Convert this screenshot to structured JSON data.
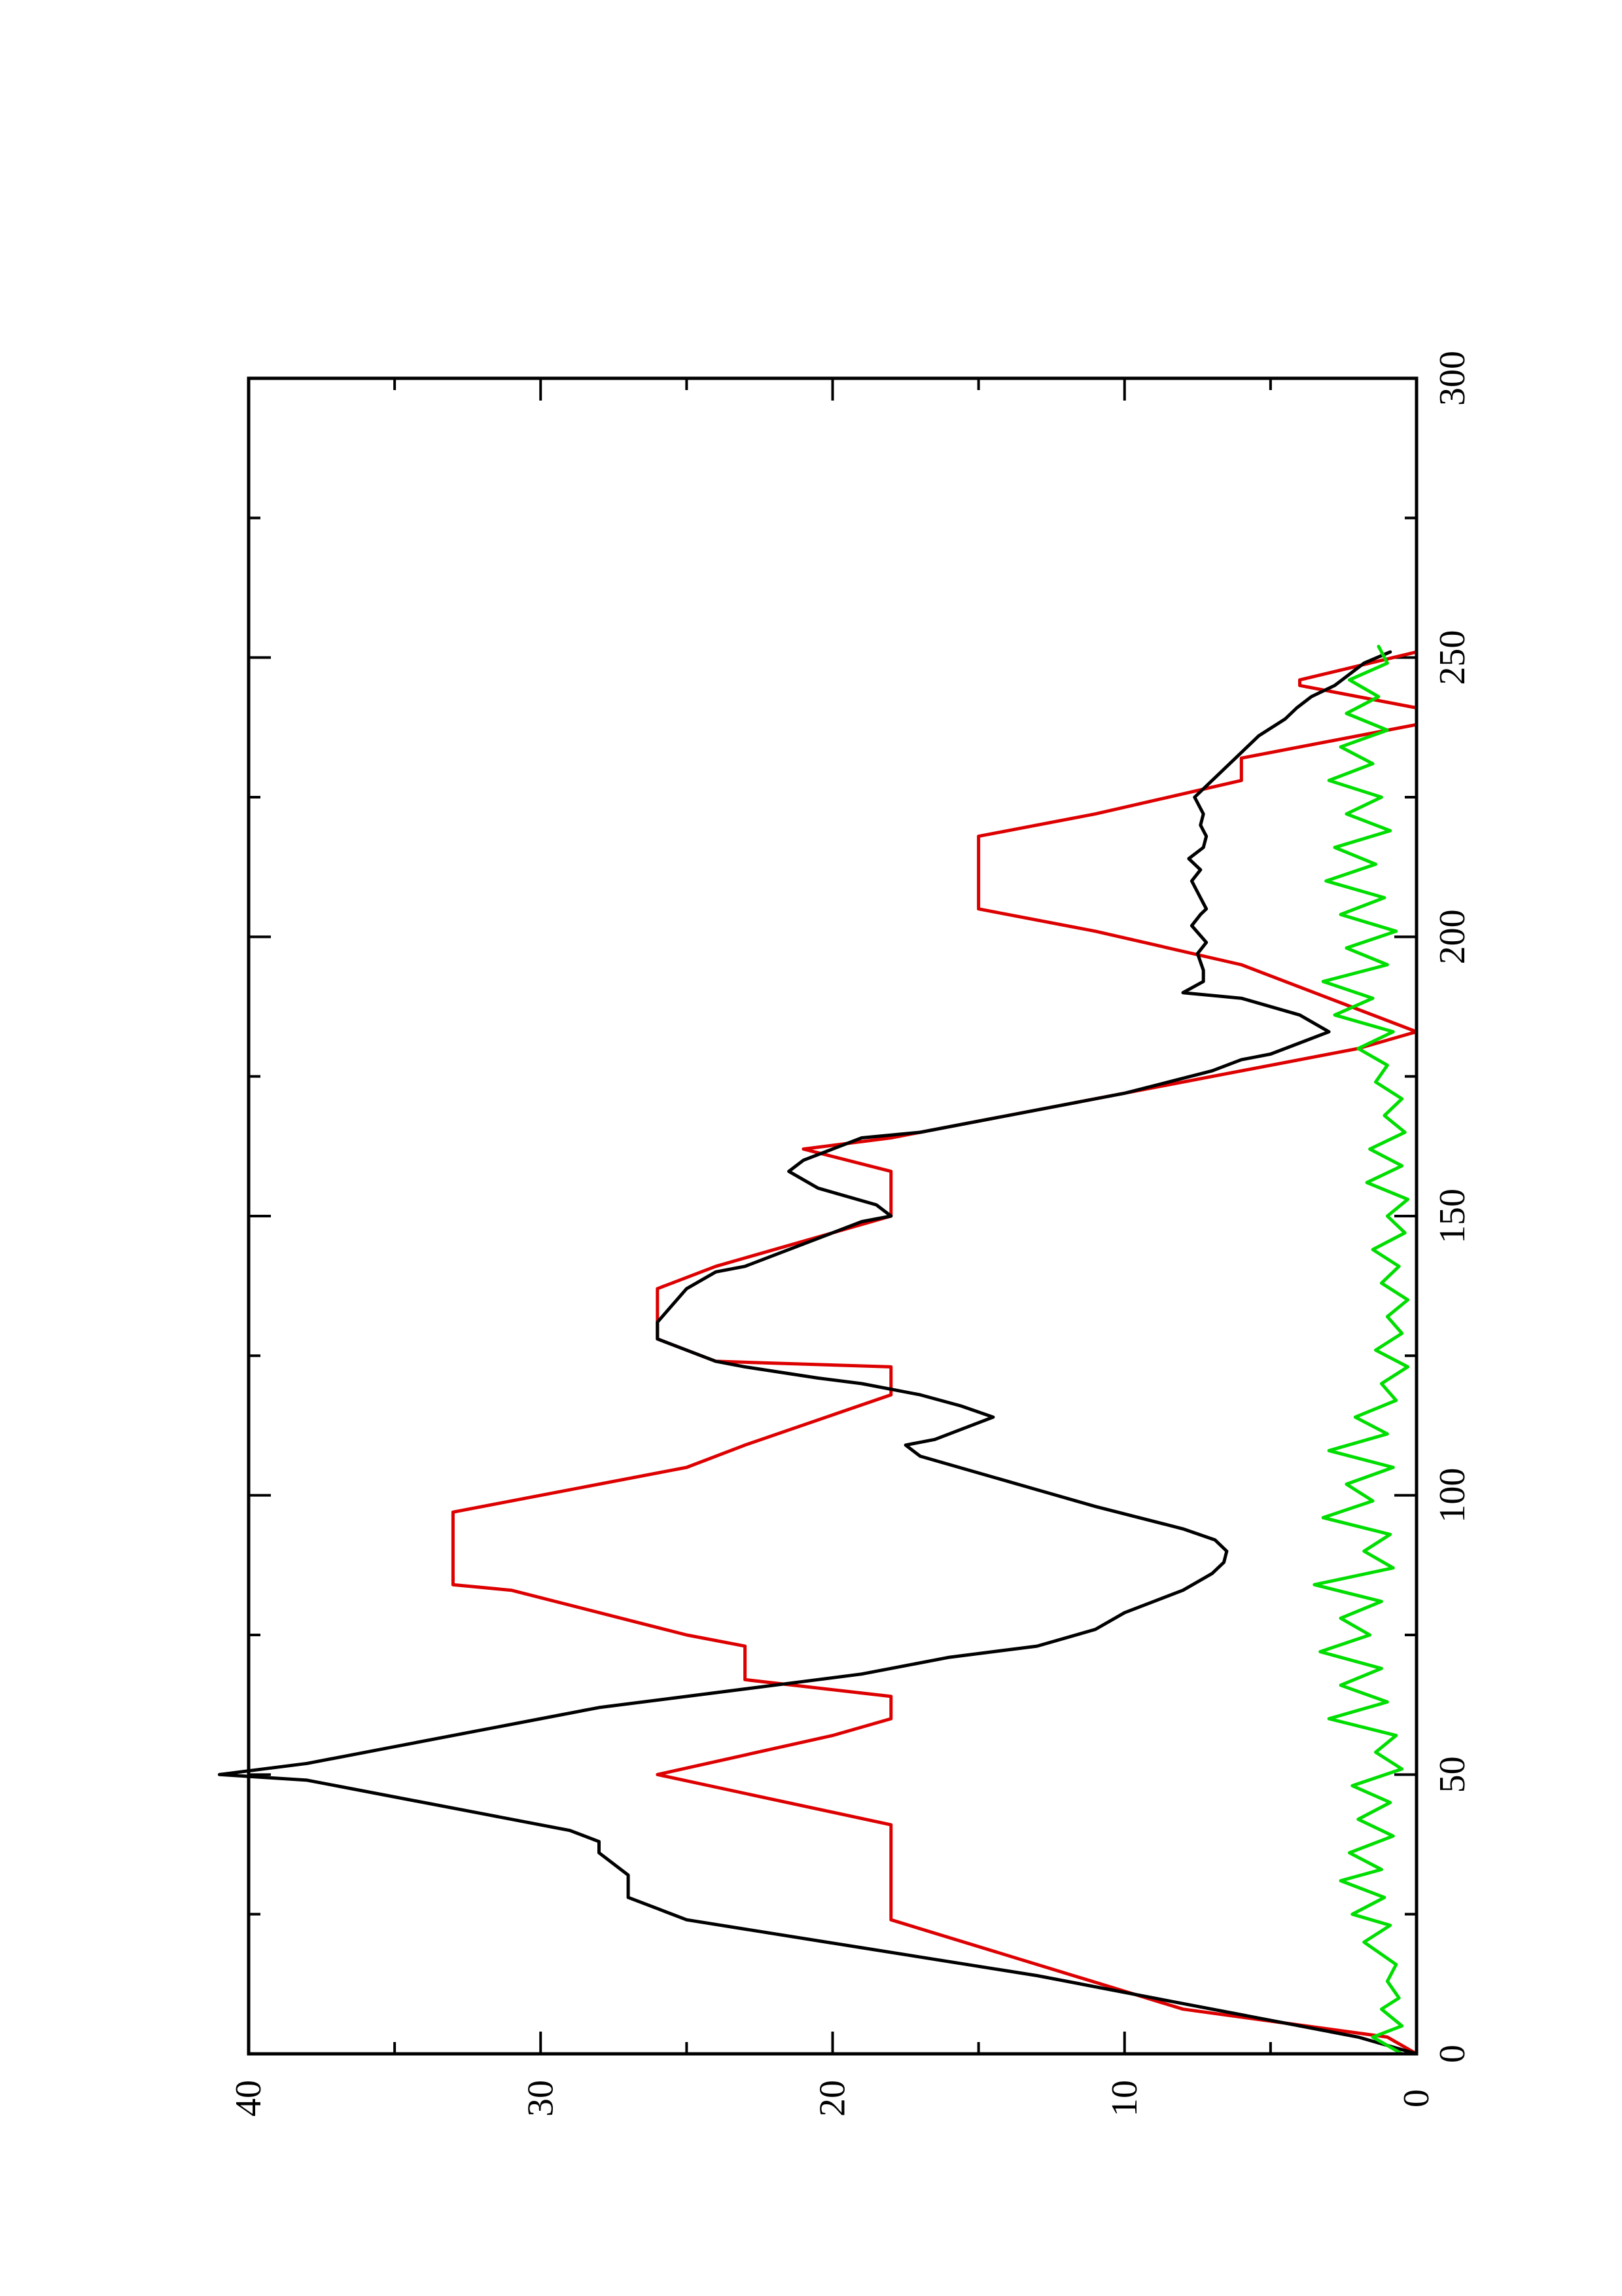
{
  "chart_data": {
    "type": "line",
    "title": "",
    "xlabel": "",
    "ylabel": "",
    "xlim": [
      0,
      300
    ],
    "ylim": [
      0,
      40
    ],
    "x_ticks": [
      0,
      50,
      100,
      150,
      200,
      250,
      300
    ],
    "x_tick_labels": [
      "0",
      "50",
      "100",
      "150",
      "200",
      "250",
      "300"
    ],
    "x_minor_ticks": [
      25,
      75,
      125,
      175,
      225,
      275
    ],
    "y_ticks": [
      0,
      10,
      20,
      30,
      40
    ],
    "y_tick_labels": [
      "0",
      "10",
      "20",
      "30",
      "40"
    ],
    "y_minor_ticks": [
      5,
      15,
      25,
      35
    ],
    "grid": false,
    "legend": "none",
    "orientation": "rotated 90° counter-clockwise (x axis runs bottom-to-top, y axis runs right-to-left)",
    "series": [
      {
        "color": "#dd0000",
        "x": [
          0,
          3,
          8,
          24,
          41,
          50,
          57,
          60,
          64,
          67,
          73,
          75,
          83,
          84,
          97,
          105,
          109,
          118,
          123,
          124,
          128,
          137,
          141,
          150,
          158,
          162,
          164,
          180,
          183,
          195,
          201,
          205,
          218,
          222,
          228,
          232,
          238,
          241,
          245,
          246,
          251
        ],
        "y": [
          0,
          1,
          8,
          18,
          18,
          26,
          20,
          18,
          18,
          23,
          23,
          25,
          31,
          33,
          33,
          25,
          23,
          18,
          18,
          24,
          26,
          26,
          24,
          18,
          18,
          21,
          18,
          2,
          0,
          6,
          11,
          15,
          15,
          11,
          6,
          6,
          0,
          0,
          4,
          4,
          0
        ]
      },
      {
        "color": "#000000",
        "x": [
          0,
          3,
          6,
          10,
          14,
          19,
          24,
          26,
          28,
          32,
          36,
          38,
          40,
          43,
          46,
          49,
          50,
          52,
          55,
          58,
          60,
          62,
          64,
          66,
          68,
          71,
          73,
          76,
          79,
          81,
          83,
          86,
          88,
          90,
          92,
          94,
          96,
          98,
          101,
          104,
          107,
          109,
          110,
          114,
          116,
          118,
          120,
          121,
          123,
          124,
          127,
          128,
          131,
          137,
          140,
          141,
          144,
          147,
          149,
          150,
          152,
          155,
          158,
          160,
          162,
          164,
          165,
          168,
          172,
          176,
          178,
          179,
          181,
          183,
          186,
          189,
          190,
          192,
          194,
          197,
          199,
          202,
          204,
          205,
          208,
          210,
          212,
          214,
          216,
          218,
          220,
          222,
          225,
          229,
          232,
          236,
          239,
          241,
          243,
          245,
          247,
          249,
          251
        ],
        "y": [
          0,
          2,
          5,
          9,
          13,
          19,
          25,
          26,
          27,
          27,
          28,
          28,
          29,
          32,
          35,
          38,
          41,
          38,
          35,
          32,
          30,
          28,
          25,
          22,
          19,
          16,
          13,
          11,
          10,
          9,
          8,
          7,
          6.6,
          6.5,
          6.9,
          8,
          9.5,
          11,
          13,
          15,
          17,
          17.5,
          16.5,
          14.5,
          15.6,
          17,
          19,
          20.5,
          23,
          24,
          25.5,
          26,
          26,
          25,
          24,
          23,
          21.5,
          20,
          19,
          18,
          18.5,
          20.5,
          21.5,
          21,
          20,
          19,
          17,
          14,
          10,
          7,
          6,
          5,
          4,
          3,
          4,
          6,
          8,
          7.3,
          7.3,
          7.5,
          7.2,
          7.7,
          7.4,
          7.2,
          7.5,
          7.7,
          7.4,
          7.8,
          7.3,
          7.2,
          7.4,
          7.3,
          7.6,
          6.8,
          6.2,
          5.4,
          4.5,
          4.1,
          3.6,
          2.8,
          2.3,
          1.8,
          0.9
        ]
      },
      {
        "color": "#00dd00",
        "x": [
          0,
          3,
          5,
          8,
          10,
          13,
          16,
          20,
          23,
          25,
          28,
          31,
          33,
          36,
          39,
          42,
          45,
          48,
          51,
          54,
          57,
          60,
          63,
          66,
          69,
          72,
          75,
          78,
          81,
          84,
          87,
          90,
          93,
          96,
          99,
          102,
          105,
          108,
          111,
          114,
          117,
          120,
          123,
          126,
          129,
          132,
          135,
          138,
          141,
          144,
          147,
          150,
          153,
          156,
          159,
          162,
          165,
          168,
          171,
          174,
          177,
          180,
          183,
          186,
          189,
          192,
          195,
          198,
          201,
          204,
          207,
          210,
          213,
          216,
          219,
          222,
          225,
          228,
          231,
          234,
          237,
          240,
          243,
          246,
          249,
          252
        ],
        "y": [
          0.5,
          1.5,
          0.5,
          1.2,
          0.6,
          1,
          0.7,
          1.8,
          0.9,
          2.2,
          1.1,
          2.6,
          1.2,
          2.3,
          0.8,
          2,
          0.9,
          2.2,
          0.5,
          1.4,
          0.7,
          3,
          1,
          2.6,
          1.2,
          3.3,
          1.6,
          2.6,
          1.2,
          3.5,
          0.8,
          1.8,
          0.9,
          3.2,
          1.5,
          2.4,
          0.8,
          3,
          1,
          2.1,
          0.7,
          1.2,
          0.3,
          1.4,
          0.5,
          1,
          0.3,
          1.2,
          0.6,
          1.5,
          0.4,
          1,
          0.3,
          1.7,
          0.5,
          1.6,
          0.4,
          1.1,
          0.5,
          1.4,
          1,
          2,
          0.8,
          2.8,
          1.5,
          3.2,
          1,
          2.4,
          0.7,
          2.6,
          1.1,
          3.1,
          1.4,
          2.8,
          0.9,
          2.4,
          1.2,
          3,
          1.5,
          2.6,
          1,
          2.4,
          1.3,
          2.3,
          1,
          1.3
        ]
      }
    ]
  }
}
